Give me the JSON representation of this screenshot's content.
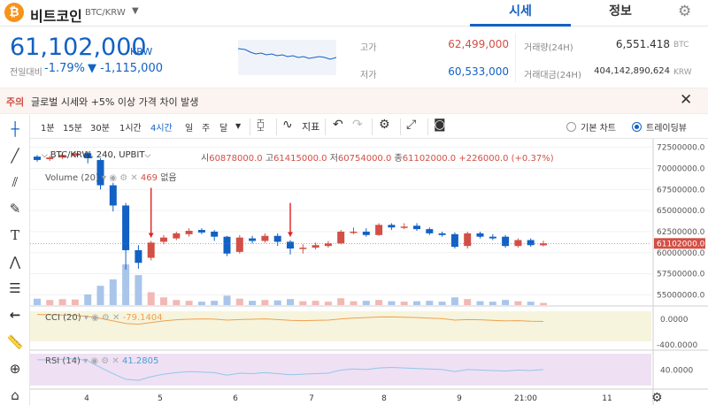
{
  "header": {
    "coin_icon": "bitcoin-icon",
    "coin_icon_glyph": "₿",
    "coin_name": "비트코인",
    "coin_pair": "BTC/KRW",
    "tab_sise": "시세",
    "tab_info": "정보"
  },
  "price": {
    "current": "61,102,000",
    "unit": "KRW",
    "change_label": "전일대비",
    "change_rate": "-1.79%",
    "change_amount": "▼ -1,115,000",
    "high_label": "고가",
    "high_value": "62,499,000",
    "low_label": "저가",
    "low_value": "60,533,000",
    "volume_label": "거래량(24H)",
    "volume_value": "6,551.418",
    "volume_unit": "BTC",
    "amount_label": "거래대금(24H)",
    "amount_value": "404,142,890,624",
    "amount_unit": "KRW"
  },
  "notice": {
    "tag": "주의",
    "text": "글로벌 시세와 +5% 이상 가격 차이 발생"
  },
  "toolbar": {
    "timeframes": [
      "1분",
      "15분",
      "30분",
      "1시간",
      "4시간",
      "일",
      "주",
      "달"
    ],
    "active_timeframe": "4시간",
    "indicator_label": "지표",
    "basic_chart": "기본 차트",
    "tradingview": "트레이딩뷰"
  },
  "legend": {
    "symbol": "BTC/KRW, 240, UPBIT",
    "open_label": "시",
    "open": "60878000.0",
    "high_label": "고",
    "high": "61415000.0",
    "low_label": "저",
    "low": "60754000.0",
    "close_label": "종",
    "close": "61102000.0",
    "change": "+226000.0 (+0.37%)",
    "volume_label": "Volume (20)",
    "volume_value": "469",
    "volume_extra": "없음",
    "cci_label": "CCI (20)",
    "cci_value": "-79.1404",
    "rsi_label": "RSI (14)",
    "rsi_value": "41.2805"
  },
  "colors": {
    "up": "#d24f45",
    "down": "#1261c4",
    "cci_line": "#f0a050",
    "cci_band": "#f6f4dc",
    "rsi_line": "#90c8e8",
    "rsi_band": "#efe0f4"
  },
  "chart_data": {
    "type": "candlestick",
    "price_ticks": [
      "72500000.0",
      "70000000.0",
      "67500000.0",
      "65000000.0",
      "62500000.0",
      "60000000.0",
      "57500000.0",
      "55000000.0"
    ],
    "price_range": [
      54000000,
      73300000
    ],
    "current_price_label": "61102000.0",
    "cci_ticks": [
      "0.0000",
      "-400.0000"
    ],
    "rsi_ticks": [
      "40.0000"
    ],
    "x_labels": [
      "4",
      "5",
      "6",
      "7",
      "8",
      "9",
      "21:00",
      "11"
    ],
    "candles": [
      {
        "o": 71400000,
        "c": 71000000,
        "h": 71600000,
        "l": 70800000
      },
      {
        "o": 71100000,
        "c": 71300000,
        "h": 71500000,
        "l": 70900000
      },
      {
        "o": 71300000,
        "c": 71600000,
        "h": 71800000,
        "l": 71100000
      },
      {
        "o": 71500000,
        "c": 71800000,
        "h": 72000000,
        "l": 71300000
      },
      {
        "o": 71800000,
        "c": 71200000,
        "h": 72000000,
        "l": 70600000
      },
      {
        "o": 71000000,
        "c": 68000000,
        "h": 71200000,
        "l": 67500000
      },
      {
        "o": 68000000,
        "c": 65600000,
        "h": 68300000,
        "l": 64900000
      },
      {
        "o": 65600000,
        "c": 60300000,
        "h": 65900000,
        "l": 58000000
      },
      {
        "o": 60300000,
        "c": 58800000,
        "h": 60900000,
        "l": 58100000
      },
      {
        "o": 59400000,
        "c": 61200000,
        "h": 61400000,
        "l": 59100000
      },
      {
        "o": 61300000,
        "c": 61800000,
        "h": 62100000,
        "l": 61000000
      },
      {
        "o": 61700000,
        "c": 62300000,
        "h": 62500000,
        "l": 61500000
      },
      {
        "o": 62200000,
        "c": 62600000,
        "h": 62900000,
        "l": 61900000
      },
      {
        "o": 62700000,
        "c": 62400000,
        "h": 62900000,
        "l": 62200000
      },
      {
        "o": 62500000,
        "c": 61900000,
        "h": 62700000,
        "l": 61400000
      },
      {
        "o": 61900000,
        "c": 59900000,
        "h": 62000000,
        "l": 59600000
      },
      {
        "o": 60100000,
        "c": 61800000,
        "h": 62100000,
        "l": 59900000
      },
      {
        "o": 61700000,
        "c": 61400000,
        "h": 62000000,
        "l": 61100000
      },
      {
        "o": 61400000,
        "c": 62000000,
        "h": 62300000,
        "l": 61200000
      },
      {
        "o": 62000000,
        "c": 61300000,
        "h": 62300000,
        "l": 60800000
      },
      {
        "o": 61300000,
        "c": 60500000,
        "h": 61500000,
        "l": 59800000
      },
      {
        "o": 60500000,
        "c": 60600000,
        "h": 61000000,
        "l": 59900000
      },
      {
        "o": 60600000,
        "c": 60900000,
        "h": 61200000,
        "l": 60400000
      },
      {
        "o": 60800000,
        "c": 61100000,
        "h": 61400000,
        "l": 60600000
      },
      {
        "o": 61100000,
        "c": 62500000,
        "h": 62700000,
        "l": 61000000
      },
      {
        "o": 62500000,
        "c": 62500000,
        "h": 63000000,
        "l": 62200000
      },
      {
        "o": 62500000,
        "c": 62100000,
        "h": 62900000,
        "l": 61900000
      },
      {
        "o": 62100000,
        "c": 63300000,
        "h": 63500000,
        "l": 62000000
      },
      {
        "o": 63300000,
        "c": 63000000,
        "h": 63500000,
        "l": 62700000
      },
      {
        "o": 63000000,
        "c": 63100000,
        "h": 63500000,
        "l": 62800000
      },
      {
        "o": 63200000,
        "c": 62800000,
        "h": 63500000,
        "l": 62600000
      },
      {
        "o": 62800000,
        "c": 62300000,
        "h": 63000000,
        "l": 62100000
      },
      {
        "o": 62300000,
        "c": 62100000,
        "h": 62500000,
        "l": 61900000
      },
      {
        "o": 62200000,
        "c": 60700000,
        "h": 62400000,
        "l": 60500000
      },
      {
        "o": 60800000,
        "c": 62300000,
        "h": 62500000,
        "l": 60500000
      },
      {
        "o": 62300000,
        "c": 61900000,
        "h": 62500000,
        "l": 61700000
      },
      {
        "o": 61900000,
        "c": 61700000,
        "h": 62200000,
        "l": 61500000
      },
      {
        "o": 61900000,
        "c": 60800000,
        "h": 62100000,
        "l": 60600000
      },
      {
        "o": 60800000,
        "c": 61500000,
        "h": 61700000,
        "l": 60600000
      },
      {
        "o": 61500000,
        "c": 60900000,
        "h": 61700000,
        "l": 60700000
      },
      {
        "o": 60878000,
        "c": 61102000,
        "h": 61415000,
        "l": 60754000
      }
    ],
    "volumes": [
      15,
      12,
      14,
      13,
      25,
      45,
      60,
      95,
      70,
      30,
      18,
      12,
      10,
      8,
      10,
      22,
      15,
      10,
      12,
      11,
      14,
      9,
      10,
      8,
      16,
      9,
      10,
      12,
      9,
      8,
      9,
      10,
      8,
      18,
      14,
      9,
      8,
      12,
      9,
      8,
      5
    ],
    "cci": [
      170,
      160,
      150,
      140,
      100,
      30,
      -60,
      -150,
      -180,
      -120,
      -60,
      -20,
      0,
      10,
      5,
      -30,
      -10,
      0,
      10,
      -10,
      -40,
      -50,
      -40,
      -30,
      10,
      40,
      60,
      80,
      85,
      70,
      60,
      40,
      20,
      -30,
      -10,
      -20,
      -40,
      -60,
      -50,
      -70,
      -79
    ],
    "rsi": [
      60,
      60,
      61,
      62,
      58,
      45,
      33,
      22,
      20,
      27,
      32,
      35,
      37,
      36,
      35,
      30,
      34,
      33,
      35,
      33,
      31,
      32,
      33,
      34,
      40,
      42,
      41,
      44,
      45,
      44,
      43,
      42,
      41,
      37,
      41,
      40,
      39,
      38,
      40,
      39,
      41
    ]
  }
}
